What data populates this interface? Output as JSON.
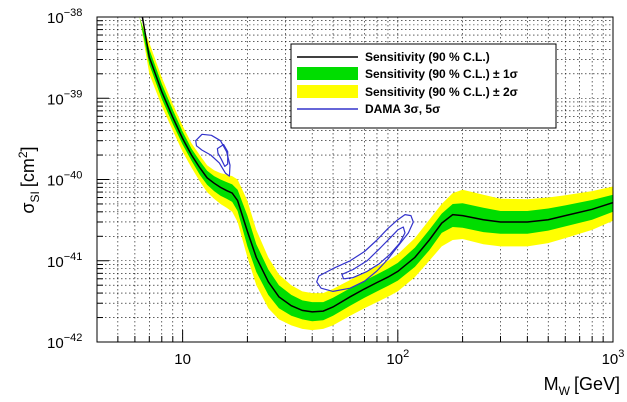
{
  "chart_data": {
    "type": "line",
    "xscale": "log",
    "yscale": "log",
    "xlim": [
      4,
      1000
    ],
    "ylim": [
      1e-42,
      1e-38
    ],
    "xlabel_main": "M",
    "xlabel_sub": "W",
    "xlabel_unit": "[GeV]",
    "ylabel_main": "σ",
    "ylabel_sub": "SI",
    "ylabel_unit_open": "[cm",
    "ylabel_unit_exp": "2",
    "ylabel_unit_close": "]",
    "x_ticks": [
      {
        "value": 10,
        "base": "10",
        "exp": ""
      },
      {
        "value": 100,
        "base": "10",
        "exp": "2"
      },
      {
        "value": 1000,
        "base": "10",
        "exp": "3"
      }
    ],
    "y_ticks": [
      {
        "value": 1e-38,
        "base": "10",
        "exp": "−38"
      },
      {
        "value": 1e-39,
        "base": "10",
        "exp": "−39"
      },
      {
        "value": 1e-40,
        "base": "10",
        "exp": "−40"
      },
      {
        "value": 1e-41,
        "base": "10",
        "exp": "−41"
      },
      {
        "value": 1e-42,
        "base": "10",
        "exp": "−42"
      }
    ],
    "grid": true,
    "legend_position": "top-right",
    "legend": [
      {
        "label": "Sensitivity (90 % C.L.)",
        "style": "line",
        "color": "#000000"
      },
      {
        "label": "Sensitivity (90 % C.L.) ± 1σ",
        "style": "band",
        "color": "#00dd00"
      },
      {
        "label": "Sensitivity (90 % C.L.) ± 2σ",
        "style": "band",
        "color": "#ffff00"
      },
      {
        "label": "DAMA 3σ, 5σ",
        "style": "line",
        "color": "#3333cc"
      }
    ],
    "series": [
      {
        "name": "Sensitivity (90 % C.L.)",
        "color": "#000000",
        "x": [
          6.5,
          7,
          8,
          9,
          10,
          11,
          12,
          13,
          14,
          15,
          16,
          17,
          18,
          20,
          22,
          25,
          28,
          32,
          36,
          40,
          45,
          50,
          60,
          70,
          80,
          90,
          100,
          120,
          140,
          160,
          180,
          200,
          250,
          300,
          400,
          500,
          600,
          800,
          1000
        ],
        "y": [
          1e-38,
          3.2e-39,
          1.2e-39,
          5.8e-40,
          3.2e-40,
          2e-40,
          1.4e-40,
          1.05e-40,
          9e-41,
          8e-41,
          7.3e-41,
          6.8e-41,
          5.5e-41,
          2.3e-41,
          1.1e-41,
          5.5e-42,
          3.6e-42,
          2.8e-42,
          2.45e-42,
          2.35e-42,
          2.4e-42,
          2.7e-42,
          3.6e-42,
          4.5e-42,
          5.4e-42,
          6.3e-42,
          7.4e-42,
          1.1e-41,
          1.8e-41,
          2.9e-41,
          3.7e-41,
          3.6e-41,
          3.2e-41,
          3e-41,
          3e-41,
          3.2e-41,
          3.6e-41,
          4.3e-41,
          5.2e-41
        ]
      }
    ],
    "bands": [
      {
        "name": "± 2σ",
        "color": "#ffff00",
        "x": [
          6.3,
          7,
          8,
          9,
          10,
          11,
          12,
          13,
          14,
          15,
          16,
          17,
          18,
          20,
          22,
          25,
          28,
          32,
          36,
          40,
          45,
          50,
          60,
          70,
          80,
          90,
          100,
          120,
          140,
          160,
          180,
          200,
          250,
          300,
          400,
          500,
          600,
          800,
          1000
        ],
        "upper": [
          1e-38,
          4.8e-39,
          1.8e-39,
          8.5e-40,
          4.6e-40,
          2.8e-40,
          2e-40,
          1.5e-40,
          1.3e-40,
          1.2e-40,
          1.15e-40,
          1.1e-40,
          1e-40,
          5.5e-41,
          2.4e-41,
          1.1e-41,
          6.8e-42,
          5e-42,
          4.2e-42,
          4e-42,
          4e-42,
          4.5e-42,
          5.8e-42,
          7.2e-42,
          8.6e-42,
          1e-41,
          1.2e-41,
          1.9e-41,
          3.2e-41,
          5e-41,
          6.8e-41,
          7.5e-41,
          6.5e-41,
          5.8e-41,
          5.7e-41,
          6e-41,
          6.4e-41,
          7.2e-41,
          8.2e-41
        ],
        "lower": [
          1e-38,
          2e-39,
          8e-40,
          4e-40,
          2.2e-40,
          1.4e-40,
          9.5e-41,
          7e-41,
          5.8e-41,
          5e-41,
          4.5e-41,
          4e-41,
          3e-41,
          1.1e-41,
          5e-42,
          2.6e-42,
          1.9e-42,
          1.6e-42,
          1.45e-42,
          1.4e-42,
          1.45e-42,
          1.6e-42,
          2.1e-42,
          2.6e-42,
          3.1e-42,
          3.6e-42,
          4.2e-42,
          6.3e-42,
          1e-41,
          1.5e-41,
          1.8e-41,
          1.85e-41,
          1.6e-41,
          1.5e-41,
          1.5e-41,
          1.65e-41,
          1.9e-41,
          2.4e-41,
          3.1e-41
        ]
      },
      {
        "name": "± 1σ",
        "color": "#00dd00",
        "x": [
          6.3,
          7,
          8,
          9,
          10,
          11,
          12,
          13,
          14,
          15,
          16,
          17,
          18,
          20,
          22,
          25,
          28,
          32,
          36,
          40,
          45,
          50,
          60,
          70,
          80,
          90,
          100,
          120,
          140,
          160,
          180,
          200,
          250,
          300,
          400,
          500,
          600,
          800,
          1000
        ],
        "upper": [
          1e-38,
          4e-39,
          1.5e-39,
          7.2e-40,
          3.9e-40,
          2.4e-40,
          1.7e-40,
          1.28e-40,
          1.1e-40,
          1e-40,
          9.3e-41,
          8.7e-41,
          7.5e-41,
          3.6e-41,
          1.6e-41,
          7.8e-42,
          5e-42,
          3.8e-42,
          3.25e-42,
          3.1e-42,
          3.1e-42,
          3.5e-42,
          4.6e-42,
          5.7e-42,
          6.8e-42,
          8e-42,
          9.4e-42,
          1.45e-41,
          2.4e-41,
          3.8e-41,
          5e-41,
          5.1e-41,
          4.5e-41,
          4.1e-41,
          4.1e-41,
          4.4e-41,
          4.8e-41,
          5.6e-41,
          6.5e-41
        ],
        "lower": [
          1e-38,
          2.6e-39,
          9.8e-40,
          4.8e-40,
          2.7e-40,
          1.7e-40,
          1.15e-40,
          8.6e-41,
          7.2e-41,
          6.3e-41,
          5.8e-41,
          5.3e-41,
          4.1e-41,
          1.5e-41,
          7.3e-42,
          3.8e-42,
          2.6e-42,
          2.1e-42,
          1.9e-42,
          1.8e-42,
          1.85e-42,
          2.1e-42,
          2.8e-42,
          3.5e-42,
          4.2e-42,
          4.9e-42,
          5.7e-42,
          8.4e-42,
          1.35e-41,
          2.2e-41,
          2.6e-41,
          2.55e-41,
          2.25e-41,
          2.15e-41,
          2.15e-41,
          2.35e-41,
          2.65e-41,
          3.2e-41,
          4e-41
        ]
      }
    ],
    "contours": [
      {
        "name": "DAMA 5σ low-mass",
        "color": "#3333cc",
        "points": [
          [
            11.5,
            3e-40
          ],
          [
            12.3,
            3.6e-40
          ],
          [
            13.6,
            3.5e-40
          ],
          [
            15.0,
            3e-40
          ],
          [
            16.0,
            2.2e-40
          ],
          [
            16.6,
            1.5e-40
          ],
          [
            16.5,
            1.1e-40
          ],
          [
            15.8,
            1.2e-40
          ],
          [
            14.8,
            1.6e-40
          ],
          [
            13.5,
            2e-40
          ],
          [
            12.3,
            2.3e-40
          ],
          [
            11.6,
            2.6e-40
          ]
        ]
      },
      {
        "name": "DAMA 3σ low-mass",
        "color": "#3333cc",
        "points": [
          [
            14.5,
            2.4e-40
          ],
          [
            15.5,
            2.7e-40
          ],
          [
            16.2,
            2.2e-40
          ],
          [
            16.2,
            1.55e-40
          ],
          [
            15.7,
            1.45e-40
          ],
          [
            15.1,
            1.8e-40
          ],
          [
            14.6,
            2.1e-40
          ]
        ]
      },
      {
        "name": "DAMA 5σ high-mass",
        "color": "#3333cc",
        "points": [
          [
            43,
            6.5e-42
          ],
          [
            50,
            8e-42
          ],
          [
            60,
            1e-41
          ],
          [
            70,
            1.3e-41
          ],
          [
            80,
            1.8e-41
          ],
          [
            90,
            2.5e-41
          ],
          [
            100,
            3.2e-41
          ],
          [
            108,
            3.7e-41
          ],
          [
            115,
            3.6e-41
          ],
          [
            118,
            3e-41
          ],
          [
            112,
            2.2e-41
          ],
          [
            100,
            1.5e-41
          ],
          [
            90,
            1.05e-41
          ],
          [
            80,
            7.5e-42
          ],
          [
            70,
            5.6e-42
          ],
          [
            60,
            4.6e-42
          ],
          [
            50,
            4.2e-42
          ],
          [
            44,
            4.6e-42
          ],
          [
            42,
            5.5e-42
          ]
        ]
      },
      {
        "name": "DAMA 3σ high-mass",
        "color": "#3333cc",
        "points": [
          [
            55,
            6.8e-42
          ],
          [
            62,
            7.8e-42
          ],
          [
            72,
            1e-41
          ],
          [
            82,
            1.4e-41
          ],
          [
            92,
            1.9e-41
          ],
          [
            100,
            2.4e-41
          ],
          [
            106,
            2.6e-41
          ],
          [
            108,
            2.2e-41
          ],
          [
            102,
            1.65e-41
          ],
          [
            92,
            1.2e-41
          ],
          [
            82,
            9.2e-42
          ],
          [
            72,
            7.4e-42
          ],
          [
            62,
            6.2e-42
          ],
          [
            56,
            6e-42
          ]
        ]
      }
    ]
  }
}
